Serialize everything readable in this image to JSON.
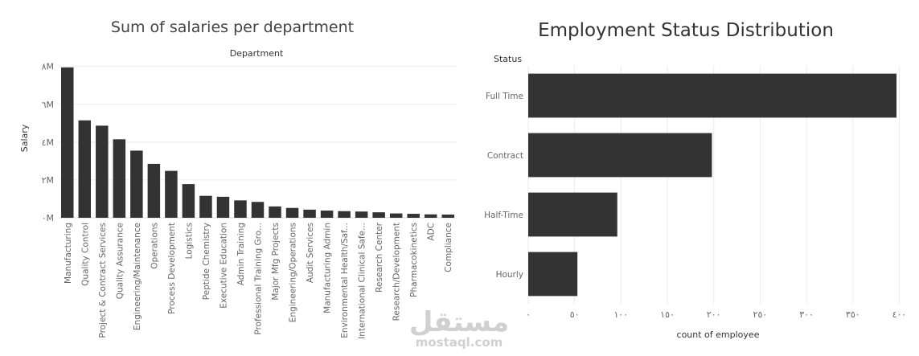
{
  "chart_data": [
    {
      "type": "bar",
      "title": "Sum of salaries per department",
      "column_header": "Department",
      "ylabel": "Salary",
      "ylim": [
        0,
        8200000
      ],
      "y_ticks": [
        0,
        2000000,
        4000000,
        6000000,
        8000000
      ],
      "y_tick_labels": [
        "٠M",
        "٢M",
        "٤M",
        "٦M",
        "٨M"
      ],
      "categories": [
        "Manufacturing",
        "Quality Control",
        "Project & Contract Services",
        "Quality Assurance",
        "Engineering/Maintenance",
        "Operations",
        "Process Development",
        "Logistics",
        "Peptide Chemistry",
        "Executive Education",
        "Admin Training",
        "Professional Training Gro...",
        "Major Mfg Projects",
        "Engineering/Operations",
        "Audit Services",
        "Manufacturing Admin",
        "Environmental Health/Saf...",
        "International Clinical Safe...",
        "Research Center",
        "Research/Development",
        "Pharmacokinetics",
        "ADC",
        "Compliance"
      ],
      "values": [
        7950000,
        5150000,
        4870000,
        4150000,
        3550000,
        2850000,
        2480000,
        1780000,
        1160000,
        1110000,
        920000,
        840000,
        600000,
        520000,
        430000,
        380000,
        350000,
        330000,
        290000,
        230000,
        210000,
        180000,
        170000
      ]
    },
    {
      "type": "bar",
      "orientation": "horizontal",
      "title": "Employment Status Distribution",
      "row_header": "Status",
      "xlabel": "count of employee",
      "xlim": [
        0,
        410
      ],
      "x_ticks": [
        0,
        50,
        100,
        150,
        200,
        250,
        300,
        350,
        400
      ],
      "x_tick_labels": [
        "٠",
        "٥٠",
        "١٠٠",
        "١٥٠",
        "٢٠٠",
        "٢٥٠",
        "٣٠٠",
        "٣٥٠",
        "٤٠٠"
      ],
      "categories": [
        "Full Time",
        "Contract",
        "Half-Time",
        "Hourly"
      ],
      "values": [
        397,
        198,
        96,
        53
      ]
    }
  ],
  "watermark": {
    "arabic": "مستقل",
    "latin": "mostaql.com"
  },
  "colors": {
    "bar": "#333333",
    "grid": "#ebebeb",
    "text": "#666666",
    "watermark": "#d0d0d0"
  }
}
